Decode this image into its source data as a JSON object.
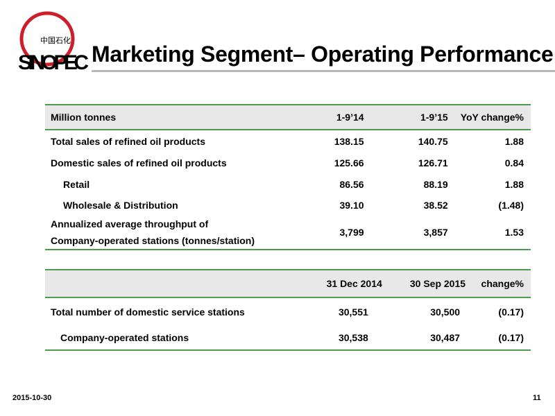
{
  "logo": {
    "brand": "SINOPEC",
    "chinese": "中国石化"
  },
  "title": "Marketing Segment– Operating Performance",
  "table1": {
    "headers": [
      "Million  tonnes",
      "1-9’14",
      "1-9’15",
      "YoY change%"
    ],
    "rows": [
      {
        "label": "Total sales of refined oil products",
        "a": "138.15",
        "b": "140.75",
        "c": "1.88"
      },
      {
        "label": "Domestic sales of refined oil products",
        "a": "125.66",
        "b": "126.71",
        "c": "0.84"
      },
      {
        "label": "Retail",
        "a": "86.56",
        "b": "88.19",
        "c": "1.88"
      },
      {
        "label": "Wholesale & Distribution",
        "a": "39.10",
        "b": "38.52",
        "c": "(1.48)"
      },
      {
        "label_line1": "Annualized average throughput of",
        "label_line2": "Company-operated stations (tonnes/station)",
        "a": "3,799",
        "b": "3,857",
        "c": "1.53"
      }
    ]
  },
  "table2": {
    "headers": [
      "",
      "31 Dec 2014",
      "30 Sep 2015",
      "change%"
    ],
    "rows": [
      {
        "label": "Total number of domestic service stations",
        "a": "30,551",
        "b": "30,500",
        "c": "(0.17)"
      },
      {
        "label": "Company-operated stations",
        "a": "30,538",
        "b": "30,487",
        "c": "(0.17)"
      }
    ]
  },
  "footer": {
    "date": "2015-10-30",
    "page": "11"
  },
  "colors": {
    "rule_green": "#4e9a4e",
    "header_gray": "#e8e8e8",
    "logo_red": "#cc1f2b"
  }
}
